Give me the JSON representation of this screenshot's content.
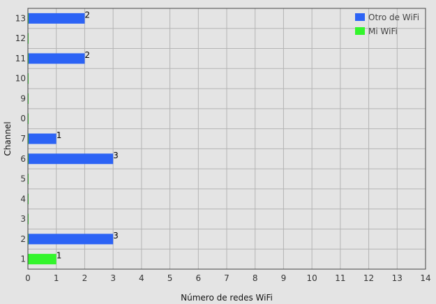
{
  "chart_data": {
    "type": "bar",
    "orientation": "horizontal",
    "categories": [
      "1",
      "2",
      "3",
      "4",
      "5",
      "6",
      "7",
      "0",
      "9",
      "10",
      "11",
      "12",
      "13"
    ],
    "series": [
      {
        "name": "Otro de WiFi",
        "color": "#2c63f5",
        "values": [
          0,
          3,
          0,
          0,
          0,
          3,
          1,
          0,
          0,
          0,
          2,
          0,
          2
        ]
      },
      {
        "name": "Mi WiFi",
        "color": "#33f52c",
        "values": [
          1,
          0,
          0,
          0,
          0,
          0,
          0,
          0,
          0,
          0,
          0,
          0,
          0
        ]
      }
    ],
    "xlabel": "Número de redes WiFi",
    "ylabel": "Channel",
    "xlim": [
      0,
      14
    ],
    "x_ticks": [
      0,
      1,
      2,
      3,
      4,
      5,
      6,
      7,
      8,
      9,
      10,
      11,
      12,
      13,
      14
    ],
    "grid": true,
    "legend_position": "top-right",
    "colors": {
      "background": "#e4e4e4",
      "grid": "#b4b4b4",
      "axis": "#444444"
    }
  }
}
